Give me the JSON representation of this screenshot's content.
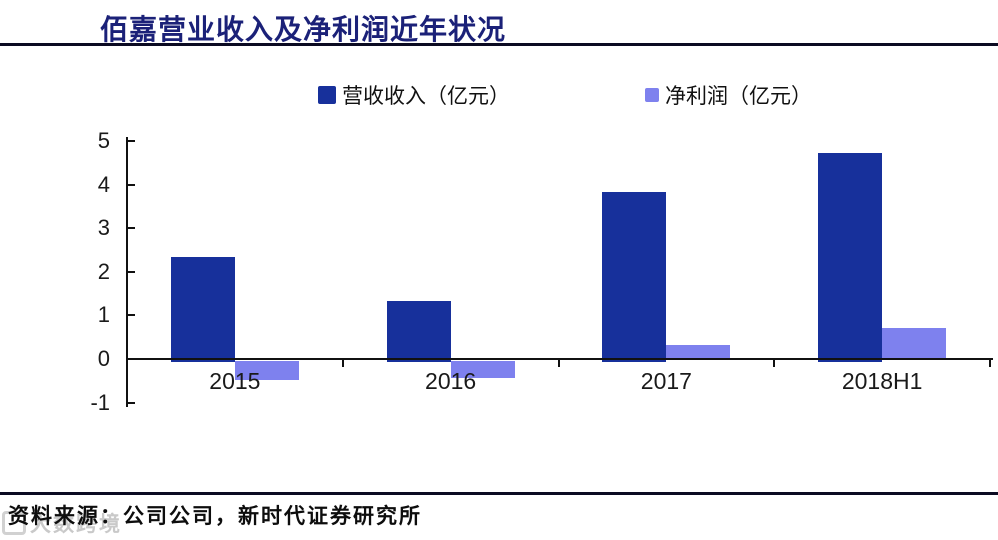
{
  "page": {
    "title": "佰嘉营业收入及净利润近年状况",
    "source_note": "资料来源：公司公司，新时代证券研究所",
    "watermark": "大数跨境"
  },
  "colors": {
    "title_text": "#1b2178",
    "revenue_bar": "#17309b",
    "net_profit_bar": "#7e81ee",
    "axis": "#111111",
    "divider": "#0b0b22"
  },
  "chart_data": {
    "type": "bar",
    "title": "佰嘉营业收入及净利润近年状况",
    "categories": [
      "2015",
      "2016",
      "2017",
      "2018H1"
    ],
    "series": [
      {
        "name": "营收收入（亿元）",
        "color": "#17309b",
        "values": [
          2.35,
          1.32,
          3.83,
          4.72
        ]
      },
      {
        "name": "净利润（亿元）",
        "color": "#7e81ee",
        "values": [
          -0.44,
          -0.38,
          0.31,
          0.72
        ]
      }
    ],
    "xlabel": "",
    "ylabel": "",
    "ylim": [
      -1,
      5
    ],
    "yticks": [
      5,
      4,
      3,
      2,
      1,
      0,
      -1
    ],
    "grid": false,
    "legend_position": "top"
  }
}
